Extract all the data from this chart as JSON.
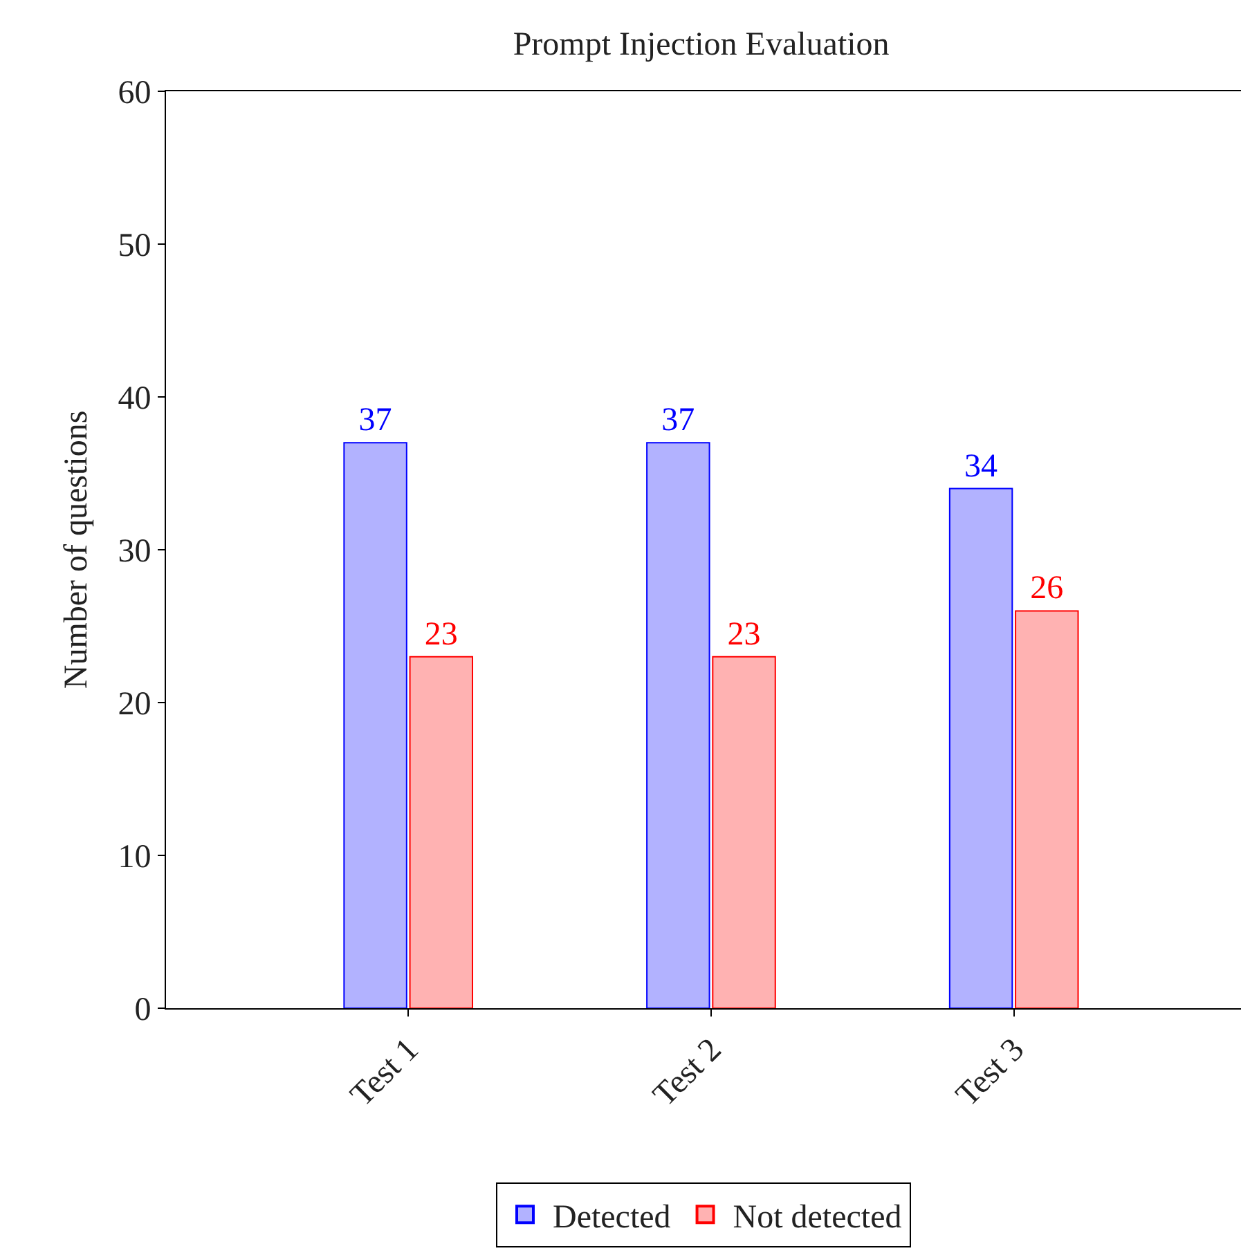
{
  "chart_data": {
    "type": "bar",
    "title": "Prompt Injection Evaluation",
    "ylabel": "Number of questions",
    "categories": [
      "Test 1",
      "Test 2",
      "Test 3"
    ],
    "series": [
      {
        "name": "Detected",
        "color": "#0000ff",
        "values": [
          37,
          37,
          34
        ]
      },
      {
        "name": "Not detected",
        "color": "#ff0000",
        "values": [
          23,
          23,
          26
        ]
      }
    ],
    "ylim": [
      0,
      60
    ],
    "yticks": [
      0,
      10,
      20,
      30,
      40,
      50,
      60
    ],
    "legend": "bottom",
    "data_labels": true
  }
}
